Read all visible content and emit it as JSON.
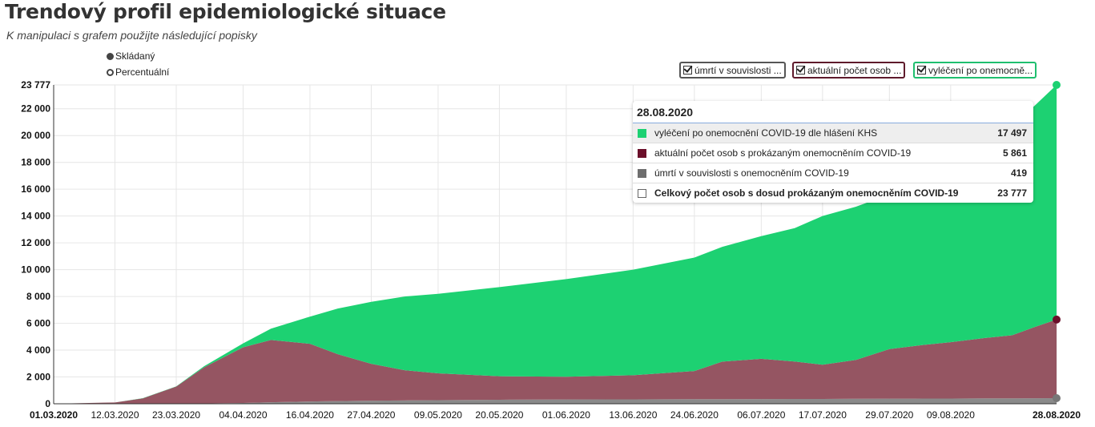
{
  "header": {
    "title": "Trendový profil epidemiologické situace",
    "subtitle": "K manipulaci s grafem použijte následující popisky"
  },
  "mode_options": [
    {
      "label": "Skládaný",
      "selected": true
    },
    {
      "label": "Percentuální",
      "selected": false
    }
  ],
  "legend": [
    {
      "label": "úmrtí v souvislosti ...",
      "color": "#555555",
      "checked": true
    },
    {
      "label": "aktuální počet osob ...",
      "color": "#5e1a2b",
      "checked": true
    },
    {
      "label": "vyléčení po onemocně...",
      "color": "#1fbf6f",
      "checked": true
    }
  ],
  "tooltip": {
    "date": "28.08.2020",
    "rows": [
      {
        "label": "vyléčení po onemocnění COVID-19 dle hlášení KHS",
        "value": "17 497",
        "color": "#1dd172"
      },
      {
        "label": "aktuální počet osob s prokázaným onemocněním COVID-19",
        "value": "5 861",
        "color": "#6b0f2a"
      },
      {
        "label": "úmrtí v souvislosti s onemocněním COVID-19",
        "value": "419",
        "color": "#6e6e6e"
      },
      {
        "label": "Celkový počet osob s dosud prokázaným onemocněním COVID-19",
        "value": "23 777",
        "color": "#ffffff"
      }
    ]
  },
  "chart_data": {
    "type": "area",
    "stacked": true,
    "title": "Trendový profil epidemiologické situace",
    "x": [
      "01.03.2020",
      "12.03.2020",
      "17.03.2020",
      "23.03.2020",
      "28.03.2020",
      "04.04.2020",
      "09.04.2020",
      "16.04.2020",
      "21.04.2020",
      "27.04.2020",
      "03.05.2020",
      "09.05.2020",
      "20.05.2020",
      "01.06.2020",
      "13.06.2020",
      "24.06.2020",
      "29.06.2020",
      "06.07.2020",
      "12.07.2020",
      "17.07.2020",
      "23.07.2020",
      "29.07.2020",
      "04.08.2020",
      "09.08.2020",
      "15.08.2020",
      "20.08.2020",
      "24.08.2020",
      "28.08.2020"
    ],
    "series": [
      {
        "name": "úmrtí v souvislosti s onemocněním COVID-19",
        "color": "#8a8a8a",
        "values": [
          0,
          0,
          2,
          5,
          20,
          60,
          110,
          170,
          200,
          230,
          250,
          270,
          300,
          320,
          330,
          340,
          345,
          350,
          355,
          360,
          370,
          380,
          385,
          390,
          400,
          405,
          410,
          419
        ]
      },
      {
        "name": "aktuální počet osob s prokázaným onemocněním COVID-19",
        "color": "#955562",
        "values": [
          0,
          100,
          400,
          1280,
          2700,
          4150,
          4650,
          4300,
          3500,
          2750,
          2250,
          2000,
          1750,
          1700,
          1800,
          2100,
          2800,
          3000,
          2800,
          2550,
          2900,
          3700,
          4000,
          4200,
          4500,
          4700,
          5300,
          5861
        ]
      },
      {
        "name": "vyléčení po onemocnění COVID-19 dle hlášení KHS",
        "color": "#1dd172",
        "values": [
          0,
          0,
          18,
          15,
          80,
          290,
          840,
          2030,
          3400,
          4620,
          5500,
          5930,
          6650,
          7280,
          7870,
          8460,
          8555,
          9150,
          9945,
          11090,
          11430,
          11520,
          12215,
          13110,
          14400,
          15695,
          16490,
          17497
        ]
      }
    ],
    "ylim": [
      0,
      23777
    ],
    "yticks": [
      0,
      2000,
      4000,
      6000,
      8000,
      10000,
      12000,
      14000,
      16000,
      18000,
      20000,
      22000,
      23777
    ],
    "ytick_labels": [
      "0",
      "2 000",
      "4 000",
      "6 000",
      "8 000",
      "10 000",
      "12 000",
      "14 000",
      "16 000",
      "18 000",
      "20 000",
      "22 000",
      "23 777"
    ],
    "xticks": [
      "01.03.2020",
      "12.03.2020",
      "23.03.2020",
      "04.04.2020",
      "16.04.2020",
      "27.04.2020",
      "09.05.2020",
      "20.05.2020",
      "01.06.2020",
      "13.06.2020",
      "24.06.2020",
      "06.07.2020",
      "17.07.2020",
      "29.07.2020",
      "09.08.2020",
      "28.08.2020"
    ],
    "grid": true
  }
}
